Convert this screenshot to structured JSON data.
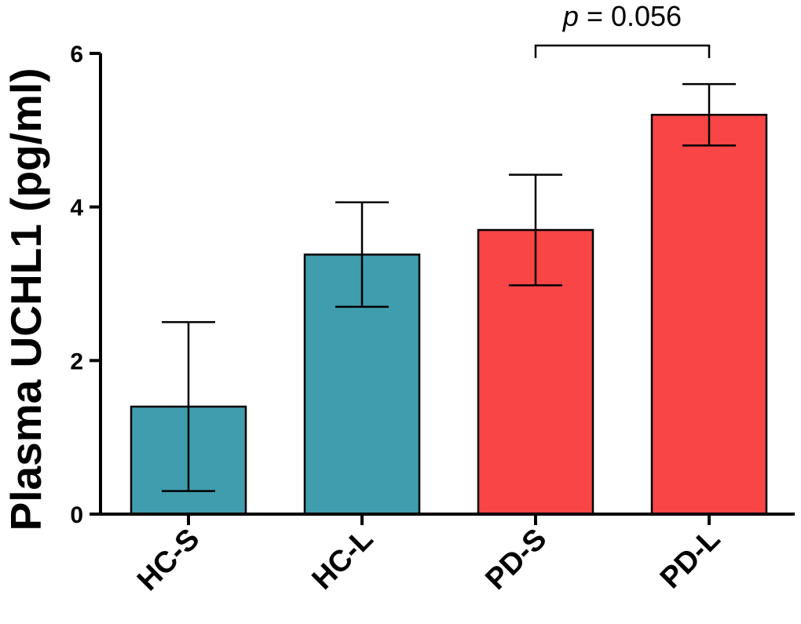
{
  "chart_data": {
    "type": "bar",
    "title": "",
    "xlabel": "",
    "ylabel": "Plasma UCHL1 (pg/ml)",
    "ylim": [
      0,
      6
    ],
    "yticks": [
      0,
      2,
      4,
      6
    ],
    "grid": false,
    "categories": [
      "HC-S",
      "HC-L",
      "PD-S",
      "PD-L"
    ],
    "values": [
      1.4,
      3.38,
      3.7,
      5.2
    ],
    "errors": [
      1.1,
      0.68,
      0.72,
      0.4
    ],
    "colors": [
      "#3f9dae",
      "#3f9dae",
      "#f94545",
      "#f94545"
    ],
    "annotation": {
      "p_symbol": "p",
      "p_rest": " = 0.056",
      "from": "PD-S",
      "to": "PD-L"
    }
  }
}
